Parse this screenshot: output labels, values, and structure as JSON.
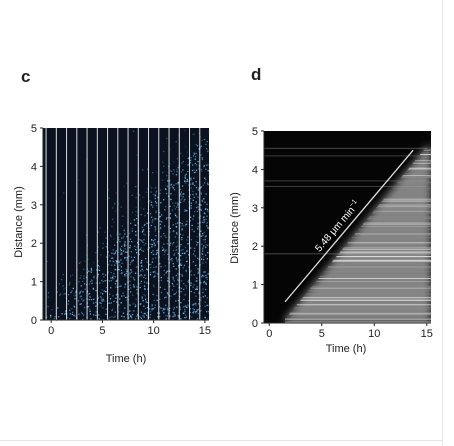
{
  "figure": {
    "panels": [
      {
        "letter": "c"
      },
      {
        "letter": "d"
      }
    ],
    "annotation": {
      "text": "5.48 μm min",
      "superscript": "−1"
    }
  },
  "chart_data": [
    {
      "type": "heatmap",
      "panel": "c",
      "xlabel": "Time (h)",
      "ylabel": "Distance (mm)",
      "xlim": [
        -0.8,
        15.4
      ],
      "ylim": [
        0,
        5
      ],
      "x_ticks": [
        0,
        5,
        10,
        15
      ],
      "y_ticks": [
        0,
        1,
        2,
        3,
        4,
        5
      ],
      "grid": false,
      "colors": {
        "background": "#0a1220",
        "signal": "#6ec7ff",
        "frame_lines": "#ffffff"
      },
      "front": {
        "x": [
          0,
          15
        ],
        "y": [
          0.2,
          4.8
        ]
      },
      "frame_times": [
        -0.5,
        0.5,
        1.5,
        2.5,
        3.5,
        4.5,
        5.5,
        6.5,
        7.5,
        8.5,
        9.5,
        10.5,
        11.5,
        12.5,
        13.5,
        14.5
      ]
    },
    {
      "type": "heatmap",
      "panel": "d",
      "xlabel": "Time (h)",
      "ylabel": "Distance (mm)",
      "xlim": [
        -0.5,
        15.4
      ],
      "ylim": [
        0,
        5
      ],
      "x_ticks": [
        0,
        5,
        10,
        15
      ],
      "y_ticks": [
        0,
        1,
        2,
        3,
        4,
        5
      ],
      "grid": false,
      "colors": {
        "background": "#050505",
        "signal": "#d8d8d8",
        "fit_line": "#dddddd"
      },
      "front": {
        "x": [
          1.5,
          15
        ],
        "y": [
          0.1,
          4.6
        ]
      },
      "fit_line": {
        "x": [
          1.5,
          13.7
        ],
        "y": [
          0.55,
          4.5
        ]
      },
      "horizontal_streaks_y": [
        1.8,
        3.55,
        3.7,
        4.35,
        4.55
      ]
    }
  ]
}
